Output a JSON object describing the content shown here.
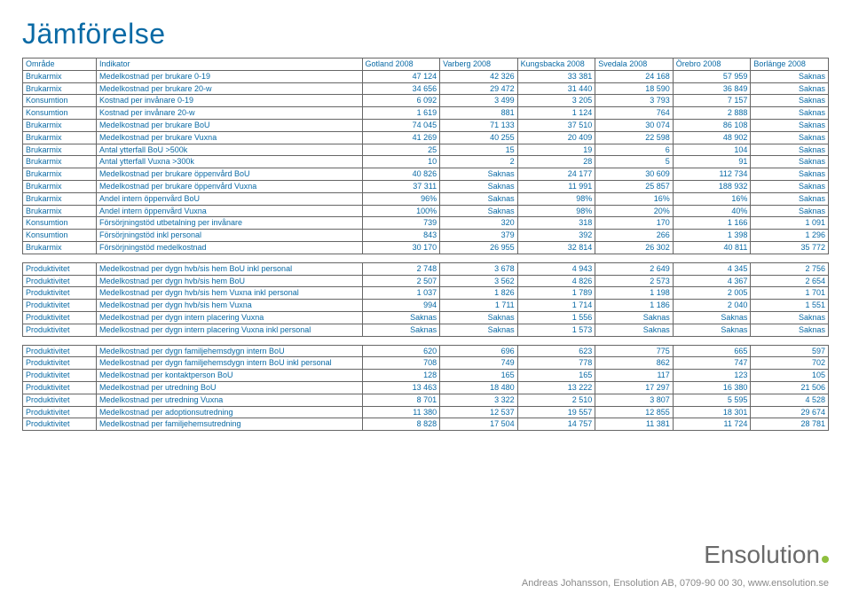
{
  "title": "Jämförelse",
  "columns": [
    "Område",
    "Indikator",
    "Gotland 2008",
    "Varberg 2008",
    "Kungsbacka 2008",
    "Svedala 2008",
    "Örebro 2008",
    "Borlänge 2008"
  ],
  "sections": [
    {
      "gap": false,
      "rows": [
        [
          "Brukarmix",
          "Medelkostnad per brukare 0-19",
          "47 124",
          "42 326",
          "33 381",
          "24 168",
          "57 959",
          "Saknas"
        ],
        [
          "Brukarmix",
          "Medelkostnad per brukare 20-w",
          "34 656",
          "29 472",
          "31 440",
          "18 590",
          "36 849",
          "Saknas"
        ],
        [
          "Konsumtion",
          "Kostnad per invånare 0-19",
          "6 092",
          "3 499",
          "3 205",
          "3 793",
          "7 157",
          "Saknas"
        ],
        [
          "Konsumtion",
          "Kostnad per invånare 20-w",
          "1 619",
          "881",
          "1 124",
          "764",
          "2 888",
          "Saknas"
        ],
        [
          "Brukarmix",
          "Medelkostnad per brukare BoU",
          "74 045",
          "71 133",
          "37 510",
          "30 074",
          "86 108",
          "Saknas"
        ],
        [
          "Brukarmix",
          "Medelkostnad per brukare Vuxna",
          "41 269",
          "40 255",
          "20 409",
          "22 598",
          "48 902",
          "Saknas"
        ],
        [
          "Brukarmix",
          "Antal ytterfall BoU >500k",
          "25",
          "15",
          "19",
          "6",
          "104",
          "Saknas"
        ],
        [
          "Brukarmix",
          "Antal ytterfall Vuxna >300k",
          "10",
          "2",
          "28",
          "5",
          "91",
          "Saknas"
        ],
        [
          "Brukarmix",
          "Medelkostnad per brukare öppenvård BoU",
          "40 826",
          "Saknas",
          "24 177",
          "30 609",
          "112 734",
          "Saknas"
        ],
        [
          "Brukarmix",
          "Medelkostnad per brukare öppenvård Vuxna",
          "37 311",
          "Saknas",
          "11 991",
          "25 857",
          "188 932",
          "Saknas"
        ],
        [
          "Brukarmix",
          "Andel intern öppenvård BoU",
          "96%",
          "Saknas",
          "98%",
          "16%",
          "16%",
          "Saknas"
        ],
        [
          "Brukarmix",
          "Andel intern öppenvård Vuxna",
          "100%",
          "Saknas",
          "98%",
          "20%",
          "40%",
          "Saknas"
        ],
        [
          "Konsumtion",
          "Försörjningstöd utbetalning per invånare",
          "739",
          "320",
          "318",
          "170",
          "1 166",
          "1 091"
        ],
        [
          "Konsumtion",
          "Försörjningstöd inkl personal",
          "843",
          "379",
          "392",
          "266",
          "1 398",
          "1 296"
        ],
        [
          "Brukarmix",
          "Försörjningstöd medelkostnad",
          "30 170",
          "26 955",
          "32 814",
          "26 302",
          "40 811",
          "35 772"
        ]
      ]
    },
    {
      "gap": true,
      "rows": [
        [
          "Produktivitet",
          "Medelkostnad per dygn hvb/sis hem BoU inkl personal",
          "2 748",
          "3 678",
          "4 943",
          "2 649",
          "4 345",
          "2 756"
        ],
        [
          "Produktivitet",
          "Medelkostnad per dygn hvb/sis hem BoU",
          "2 507",
          "3 562",
          "4 826",
          "2 573",
          "4 367",
          "2 654"
        ],
        [
          "Produktivitet",
          "Medelkostnad per dygn hvb/sis hem Vuxna inkl personal",
          "1 037",
          "1 826",
          "1 789",
          "1 198",
          "2 005",
          "1 701"
        ],
        [
          "Produktivitet",
          "Medelkostnad per dygn hvb/sis hem Vuxna",
          "994",
          "1 711",
          "1 714",
          "1 186",
          "2 040",
          "1 551"
        ],
        [
          "Produktivitet",
          "Medelkostnad per dygn intern placering Vuxna",
          "Saknas",
          "Saknas",
          "1 556",
          "Saknas",
          "Saknas",
          "Saknas"
        ],
        [
          "Produktivitet",
          "Medelkostnad per dygn intern placering Vuxna inkl personal",
          "Saknas",
          "Saknas",
          "1 573",
          "Saknas",
          "Saknas",
          "Saknas"
        ]
      ]
    },
    {
      "gap": true,
      "rows": [
        [
          "Produktivitet",
          "Medelkostnad per dygn familjehemsdygn intern BoU",
          "620",
          "696",
          "623",
          "775",
          "665",
          "597"
        ],
        [
          "Produktivitet",
          "Medelkostnad per dygn familjehemsdygn intern BoU inkl personal",
          "708",
          "749",
          "778",
          "862",
          "747",
          "702"
        ],
        [
          "Produktivitet",
          "Medelkostnad per kontaktperson BoU",
          "128",
          "165",
          "165",
          "117",
          "123",
          "105"
        ],
        [
          "Produktivitet",
          "Medelkostnad per utredning BoU",
          "13 463",
          "18 480",
          "13 222",
          "17 297",
          "16 380",
          "21 506"
        ],
        [
          "Produktivitet",
          "Medelkostnad per utredning Vuxna",
          "8 701",
          "3 322",
          "2 510",
          "3 807",
          "5 595",
          "4 528"
        ],
        [
          "Produktivitet",
          "Medelkostnad per adoptionsutredning",
          "11 380",
          "12 537",
          "19 557",
          "12 855",
          "18 301",
          "29 674"
        ],
        [
          "Produktivitet",
          "Medelkostnad per familjehemsutredning",
          "8 828",
          "17 504",
          "14 757",
          "11 381",
          "11 724",
          "28 781"
        ]
      ]
    }
  ],
  "brand": "Ensolution",
  "footer": "Andreas Johansson, Ensolution AB, 0709-90 00 30, www.ensolution.se"
}
